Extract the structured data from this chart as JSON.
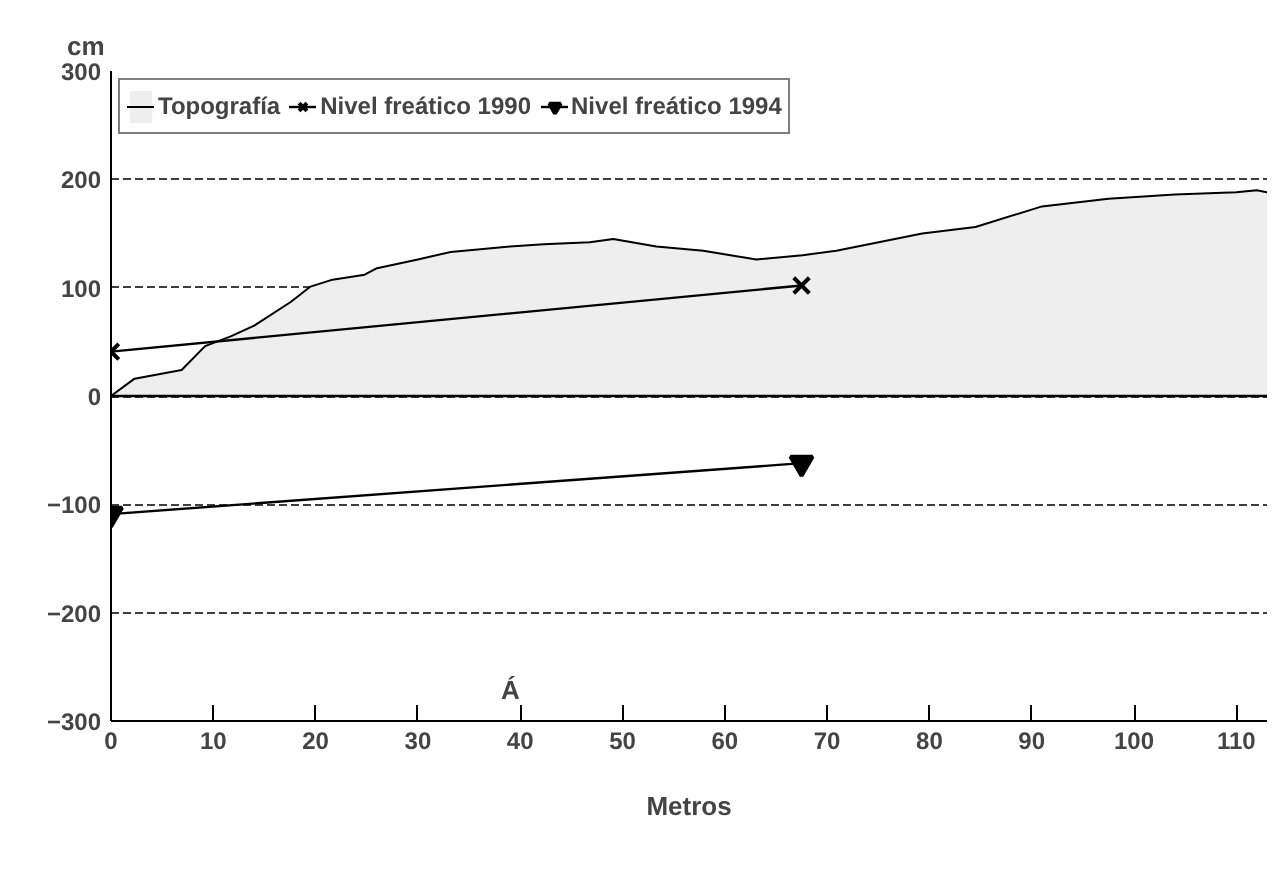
{
  "chart_data": {
    "type": "line",
    "xlabel": "Metros",
    "ylabel": "cm",
    "xlim": [
      0,
      113
    ],
    "ylim": [
      -300,
      300
    ],
    "xticks": [
      0,
      10,
      20,
      30,
      40,
      50,
      60,
      70,
      80,
      90,
      100,
      110
    ],
    "yticks": [
      -300,
      -200,
      -100,
      0,
      100,
      200,
      300
    ],
    "grid": "y",
    "legend": "top left",
    "annotations": [
      "Á"
    ],
    "series": [
      {
        "name": "Topografía",
        "type": "area",
        "color": "#eeeeee",
        "x": [
          0,
          2.3,
          6.9,
          9.2,
          11.7,
          14,
          17.6,
          19.5,
          21.5,
          24.8,
          26,
          30,
          33.2,
          39,
          42.3,
          46.8,
          49.1,
          53.3,
          57.9,
          63.1,
          67.6,
          70.9,
          79.3,
          84.5,
          91,
          97.5,
          104,
          110,
          112,
          113
        ],
        "values": [
          0,
          16,
          24,
          46,
          55,
          65,
          87,
          101,
          107,
          112,
          118,
          126,
          133,
          138,
          140,
          142,
          145,
          138,
          134,
          126,
          130,
          134,
          150,
          156,
          175,
          182,
          186,
          188,
          190,
          188
        ]
      },
      {
        "name": "Nivel freático 1990",
        "color": "#000000",
        "marker": "cross",
        "x": [
          0,
          67.5
        ],
        "values": [
          41,
          102
        ]
      },
      {
        "name": "Nivel freático 1994",
        "color": "#000000",
        "marker": "triangle",
        "x": [
          0,
          67.5
        ],
        "values": [
          -109,
          -62
        ]
      }
    ]
  }
}
